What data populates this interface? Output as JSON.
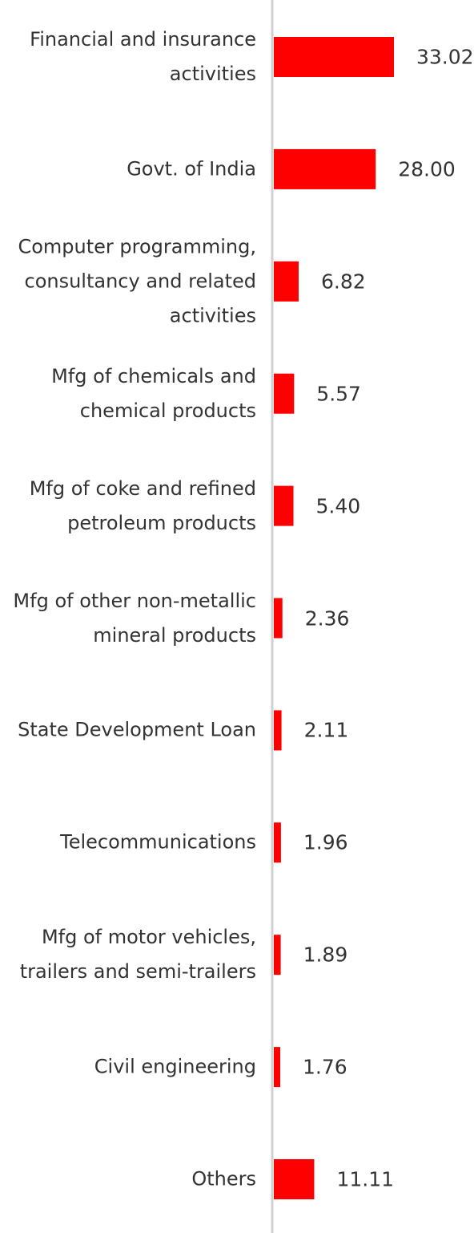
{
  "chart_data": {
    "type": "bar",
    "orientation": "horizontal",
    "color": "#ff0000",
    "categories": [
      "Financial and insurance\nactivities",
      "Govt. of India",
      "Computer programming,\nconsultancy and related\nactivities",
      "Mfg of chemicals and\nchemical products",
      "Mfg of coke and refined\npetroleum products",
      "Mfg of other non-metallic\nmineral products",
      "State Development Loan",
      "Telecommunications",
      "Mfg of motor vehicles,\ntrailers and semi-trailers",
      "Civil engineering",
      "Others"
    ],
    "values": [
      33.02,
      28.0,
      6.82,
      5.57,
      5.4,
      2.36,
      2.11,
      1.96,
      1.89,
      1.76,
      11.11
    ],
    "value_labels": [
      "33.02",
      "28.00",
      "6.82",
      "5.57",
      "5.40",
      "2.36",
      "2.11",
      "1.96",
      "1.89",
      "1.76",
      "11.11"
    ]
  }
}
